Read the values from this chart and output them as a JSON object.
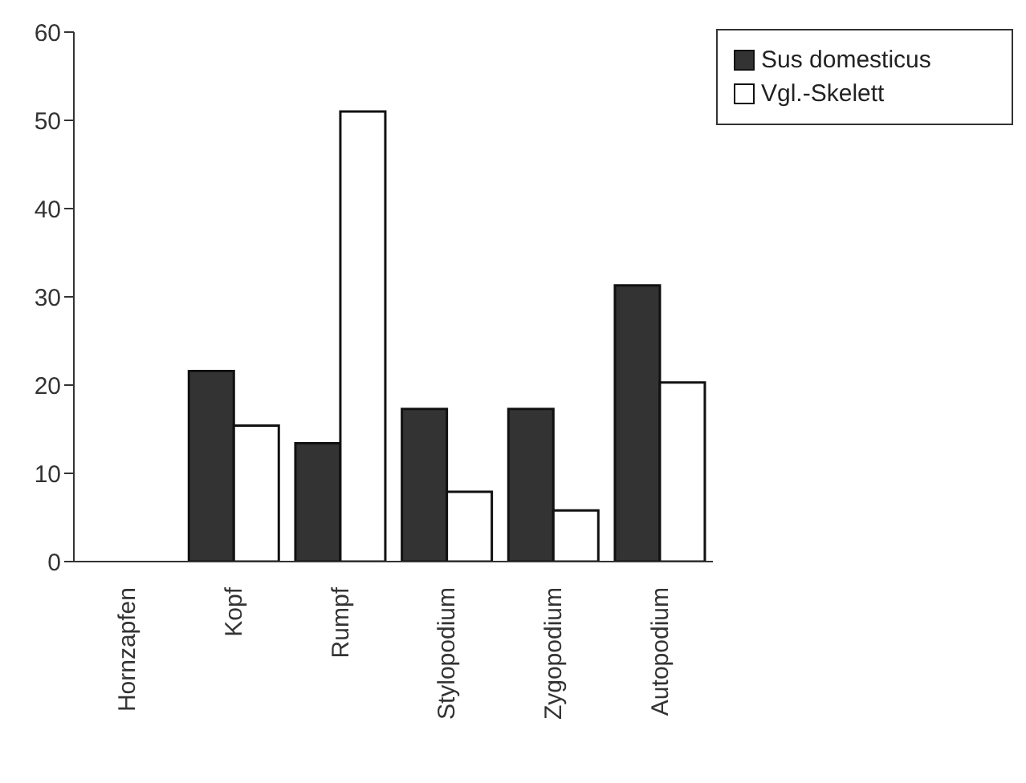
{
  "chart_data": {
    "type": "bar",
    "categories": [
      "Hornzapfen",
      "Kopf",
      "Rumpf",
      "Stylopodium",
      "Zygopodium",
      "Autopodium"
    ],
    "series": [
      {
        "name": "Sus domesticus",
        "color": "#333333",
        "values": [
          0,
          21.6,
          13.4,
          17.3,
          17.3,
          31.3
        ]
      },
      {
        "name": "Vgl.-Skelett",
        "color": "#ffffff",
        "values": [
          0,
          15.4,
          51.0,
          7.9,
          5.8,
          20.3
        ]
      }
    ],
    "ylim": [
      0,
      60
    ],
    "yticks": [
      0,
      10,
      20,
      30,
      40,
      50,
      60
    ],
    "grid": false,
    "legend": "top right"
  }
}
